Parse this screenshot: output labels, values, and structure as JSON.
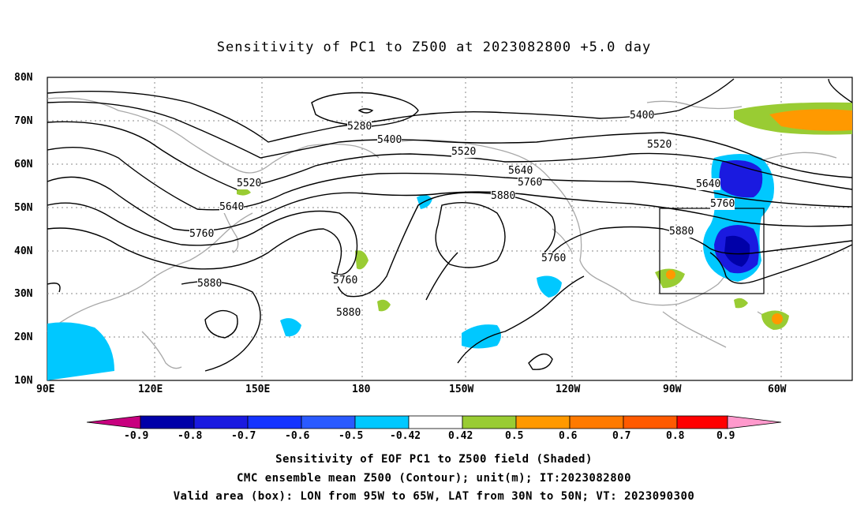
{
  "title": "Sensitivity of PC1 to Z500 at 2023082800 +5.0 day",
  "lat_labels": [
    "80N",
    "70N",
    "60N",
    "50N",
    "40N",
    "30N",
    "20N",
    "10N"
  ],
  "lon_labels": [
    "90E",
    "120E",
    "150E",
    "180",
    "150W",
    "120W",
    "90W",
    "60W"
  ],
  "contour_labels": [
    "5280",
    "5400",
    "5400",
    "5520",
    "5520",
    "5520",
    "5640",
    "5640",
    "5640",
    "5760",
    "5760",
    "5760",
    "5760",
    "5760",
    "5880",
    "5880",
    "5880",
    "5880"
  ],
  "colorbar": {
    "ticks": [
      "-0.9",
      "-0.8",
      "-0.7",
      "-0.6",
      "-0.5",
      "-0.42",
      "0.42",
      "0.5",
      "0.6",
      "0.7",
      "0.8",
      "0.9"
    ],
    "colors": [
      "#c8007f",
      "#0000a8",
      "#1a1ae0",
      "#1433ff",
      "#2a5aff",
      "#2f8fff",
      "#00c8ff",
      "#ffffff",
      "#99cc33",
      "#ff9900",
      "#ff7a00",
      "#ff5a00",
      "#ff2a00",
      "#ff0000",
      "#ff99cc"
    ]
  },
  "footer": {
    "line1": "Sensitivity of EOF PC1 to Z500 field (Shaded)",
    "line2": "CMC ensemble mean Z500 (Contour); unit(m); IT:2023082800",
    "line3": "Valid area (box): LON from 95W to 65W, LAT from 30N to 50N; VT: 2023090300"
  }
}
